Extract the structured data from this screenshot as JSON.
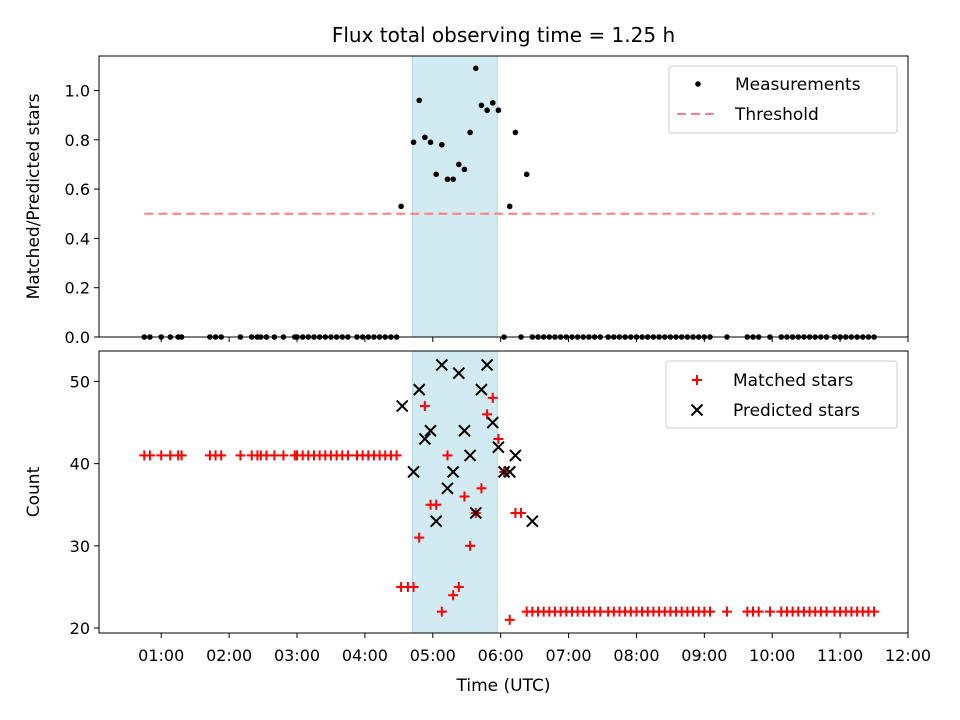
{
  "title": "Flux total observing time = 1.25 h",
  "colors": {
    "measure": "#000000",
    "threshold": "#ff7f7f",
    "matched": "#ff0000",
    "predicted": "#000000",
    "span": "#add8e6"
  },
  "chart_data": [
    {
      "type": "scatter",
      "ylabel": "Matched/Predicted stars",
      "xlim": [
        "00:05",
        "12:00"
      ],
      "ylim": [
        0,
        1.14
      ],
      "yticks": [
        "0.0",
        "0.2",
        "0.4",
        "0.6",
        "0.8",
        "1.0"
      ],
      "ytick_values": [
        0,
        0.2,
        0.4,
        0.6,
        0.8,
        1.0
      ],
      "shaded_span": [
        "04:42",
        "05:57"
      ],
      "legend": {
        "position": "top-right",
        "entries": [
          "Measurements",
          "Threshold"
        ]
      },
      "threshold": {
        "name": "Threshold",
        "value": 0.5,
        "x_range": [
          "00:45",
          "11:30"
        ],
        "style": "dashed"
      },
      "series": [
        {
          "name": "Measurements",
          "x": [
            "00:45",
            "00:50",
            "01:00",
            "01:08",
            "01:15",
            "01:18",
            "01:43",
            "01:48",
            "01:53",
            "02:10",
            "02:20",
            "02:25",
            "02:28",
            "02:33",
            "02:40",
            "02:48",
            "02:58",
            "03:00",
            "03:05",
            "03:10",
            "03:15",
            "03:20",
            "03:25",
            "03:30",
            "03:35",
            "03:40",
            "03:45",
            "03:53",
            "03:58",
            "04:03",
            "04:08",
            "04:13",
            "04:18",
            "04:23",
            "04:28",
            "04:32",
            "04:43",
            "04:48",
            "04:53",
            "04:58",
            "05:03",
            "05:08",
            "05:13",
            "05:18",
            "05:23",
            "05:28",
            "05:33",
            "05:38",
            "05:43",
            "05:48",
            "05:53",
            "05:58",
            "06:03",
            "06:08",
            "06:13",
            "06:18",
            "06:23",
            "06:28",
            "06:33",
            "06:38",
            "06:43",
            "06:48",
            "06:53",
            "06:58",
            "07:03",
            "07:08",
            "07:13",
            "07:18",
            "07:23",
            "07:28",
            "07:35",
            "07:40",
            "07:45",
            "07:50",
            "07:55",
            "08:00",
            "08:05",
            "08:10",
            "08:15",
            "08:20",
            "08:25",
            "08:30",
            "08:35",
            "08:40",
            "08:45",
            "08:50",
            "08:55",
            "09:00",
            "09:05",
            "09:20",
            "09:38",
            "09:43",
            "09:48",
            "09:58",
            "10:08",
            "10:13",
            "10:18",
            "10:23",
            "10:28",
            "10:33",
            "10:38",
            "10:43",
            "10:48",
            "10:55",
            "11:00",
            "11:05",
            "11:10",
            "11:15",
            "11:20",
            "11:25",
            "11:30"
          ],
          "y": [
            0,
            0,
            0,
            0,
            0,
            0,
            0,
            0,
            0,
            0,
            0,
            0,
            0,
            0,
            0,
            0,
            0,
            0,
            0,
            0,
            0,
            0,
            0,
            0,
            0,
            0,
            0,
            0,
            0,
            0,
            0,
            0,
            0,
            0,
            0,
            0.53,
            0.79,
            0.96,
            0.81,
            0.79,
            0.66,
            0.78,
            0.64,
            0.64,
            0.7,
            0.68,
            0.83,
            1.09,
            0.94,
            0.92,
            0.95,
            0.92,
            0,
            0.53,
            0.83,
            0,
            0.66,
            0,
            0,
            0,
            0,
            0,
            0,
            0,
            0,
            0,
            0,
            0,
            0,
            0,
            0,
            0,
            0,
            0,
            0,
            0,
            0,
            0,
            0,
            0,
            0,
            0,
            0,
            0,
            0,
            0,
            0,
            0,
            0,
            0,
            0,
            0,
            0,
            0,
            0,
            0,
            0,
            0,
            0,
            0,
            0,
            0,
            0,
            0,
            0,
            0,
            0,
            0,
            0,
            0,
            0
          ]
        }
      ]
    },
    {
      "type": "scatter",
      "ylabel": "Count",
      "xlabel": "Time (UTC)",
      "xlim": [
        "00:05",
        "12:00"
      ],
      "ylim": [
        19.4,
        53.7
      ],
      "yticks": [
        "20",
        "30",
        "40",
        "50"
      ],
      "ytick_values": [
        20,
        30,
        40,
        50
      ],
      "xticks": [
        "01:00",
        "02:00",
        "03:00",
        "04:00",
        "05:00",
        "06:00",
        "07:00",
        "08:00",
        "09:00",
        "10:00",
        "11:00",
        "12:00"
      ],
      "shaded_span": [
        "04:42",
        "05:57"
      ],
      "legend": {
        "position": "top-right",
        "entries": [
          "Matched stars",
          "Predicted stars"
        ]
      },
      "series": [
        {
          "name": "Matched stars",
          "x": [
            "00:45",
            "00:50",
            "01:00",
            "01:08",
            "01:15",
            "01:18",
            "01:43",
            "01:48",
            "01:53",
            "02:10",
            "02:20",
            "02:25",
            "02:28",
            "02:33",
            "02:40",
            "02:48",
            "02:58",
            "03:00",
            "03:05",
            "03:10",
            "03:15",
            "03:20",
            "03:25",
            "03:30",
            "03:35",
            "03:40",
            "03:45",
            "03:53",
            "03:58",
            "04:03",
            "04:08",
            "04:13",
            "04:18",
            "04:23",
            "04:28",
            "04:32",
            "04:38",
            "04:43",
            "04:48",
            "04:53",
            "04:58",
            "05:03",
            "05:08",
            "05:13",
            "05:18",
            "05:23",
            "05:28",
            "05:33",
            "05:38",
            "05:43",
            "05:48",
            "05:53",
            "05:58",
            "06:03",
            "06:08",
            "06:13",
            "06:18",
            "06:23",
            "06:28",
            "06:33",
            "06:38",
            "06:43",
            "06:48",
            "06:53",
            "06:58",
            "07:03",
            "07:08",
            "07:13",
            "07:18",
            "07:23",
            "07:28",
            "07:35",
            "07:40",
            "07:45",
            "07:50",
            "07:55",
            "08:00",
            "08:05",
            "08:10",
            "08:15",
            "08:20",
            "08:25",
            "08:30",
            "08:35",
            "08:40",
            "08:45",
            "08:50",
            "08:55",
            "09:00",
            "09:05",
            "09:20",
            "09:38",
            "09:43",
            "09:48",
            "09:58",
            "10:08",
            "10:13",
            "10:18",
            "10:23",
            "10:28",
            "10:33",
            "10:38",
            "10:43",
            "10:48",
            "10:55",
            "11:00",
            "11:05",
            "11:10",
            "11:15",
            "11:20",
            "11:25",
            "11:30"
          ],
          "y": [
            41,
            41,
            41,
            41,
            41,
            41,
            41,
            41,
            41,
            41,
            41,
            41,
            41,
            41,
            41,
            41,
            41,
            41,
            41,
            41,
            41,
            41,
            41,
            41,
            41,
            41,
            41,
            41,
            41,
            41,
            41,
            41,
            41,
            41,
            41,
            25,
            25,
            25,
            31,
            47,
            35,
            35,
            22,
            41,
            24,
            25,
            36,
            30,
            34,
            37,
            46,
            48,
            43,
            39,
            21,
            34,
            34,
            22,
            22,
            22,
            22,
            22,
            22,
            22,
            22,
            22,
            22,
            22,
            22,
            22,
            22,
            22,
            22,
            22,
            22,
            22,
            22,
            22,
            22,
            22,
            22,
            22,
            22,
            22,
            22,
            22,
            22,
            22,
            22,
            22,
            22,
            22,
            22,
            22,
            22,
            22,
            22,
            22,
            22,
            22,
            22,
            22,
            22,
            22,
            22,
            22,
            22,
            22,
            22,
            22,
            22,
            22
          ]
        },
        {
          "name": "Predicted stars",
          "x": [
            "04:33",
            "04:43",
            "04:48",
            "04:53",
            "04:58",
            "05:03",
            "05:08",
            "05:13",
            "05:18",
            "05:23",
            "05:28",
            "05:33",
            "05:38",
            "05:43",
            "05:48",
            "05:53",
            "05:58",
            "06:03",
            "06:08",
            "06:13",
            "06:28"
          ],
          "y": [
            47,
            39,
            49,
            43,
            44,
            33,
            52,
            37,
            39,
            51,
            44,
            41,
            34,
            49,
            52,
            45,
            42,
            39,
            39,
            41,
            33
          ]
        }
      ]
    }
  ]
}
